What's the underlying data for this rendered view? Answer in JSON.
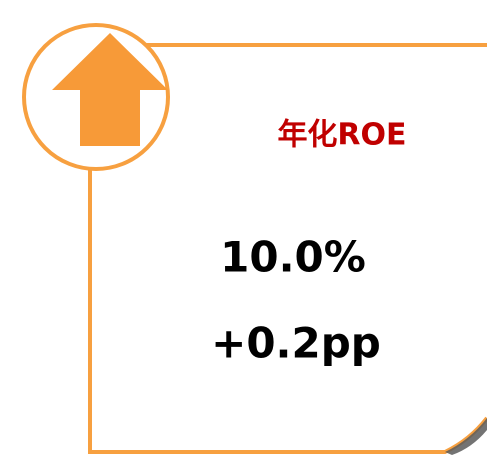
{
  "card": {
    "title": "年化ROE",
    "value": "10.0%",
    "change": "+0.2pp"
  }
}
